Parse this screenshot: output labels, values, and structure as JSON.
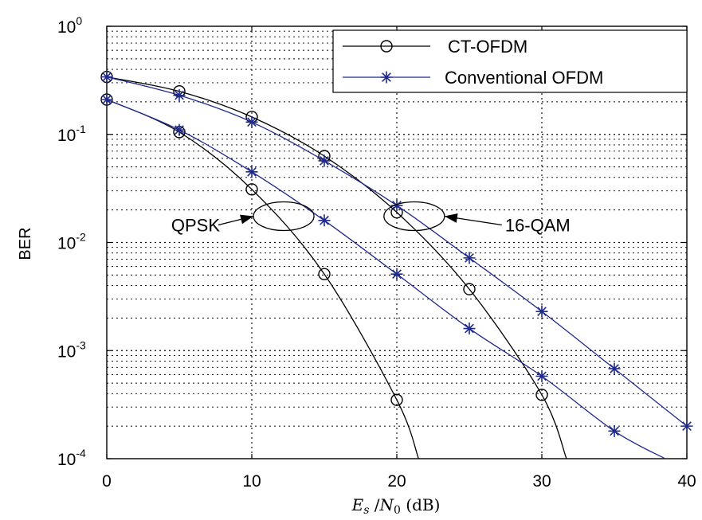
{
  "chart_data": {
    "type": "line",
    "title": "",
    "xlabel": "E_s / N_0 (dB)",
    "ylabel": "BER",
    "xlim": [
      0,
      40
    ],
    "ylim": [
      0.0001,
      1
    ],
    "yscale": "log",
    "grid": true,
    "legend_position": "top-right",
    "x_ticks": [
      "0",
      "10",
      "20",
      "30",
      "40"
    ],
    "y_ticks": [
      {
        "base": "10",
        "exp": "0"
      },
      {
        "base": "10",
        "exp": "-1"
      },
      {
        "base": "10",
        "exp": "-2"
      },
      {
        "base": "10",
        "exp": "-3"
      },
      {
        "base": "10",
        "exp": "-4"
      }
    ],
    "legend": [
      {
        "label": "CT-OFDM",
        "marker": "circle",
        "color": "#000000"
      },
      {
        "label": "Conventional OFDM",
        "marker": "star",
        "color": "#1f2a8c"
      }
    ],
    "annotations": [
      {
        "text": "QPSK",
        "x": 12.2,
        "y": 0.0175
      },
      {
        "text": "16-QAM",
        "x": 21.2,
        "y": 0.0175
      }
    ],
    "series": [
      {
        "group": "CT-OFDM",
        "modulation": "QPSK",
        "marker": "circle",
        "color": "#000000",
        "x": [
          0,
          5,
          10,
          15,
          20,
          21.5
        ],
        "y": [
          0.21,
          0.105,
          0.031,
          0.0051,
          0.00035,
          0.0001
        ]
      },
      {
        "group": "CT-OFDM",
        "modulation": "16-QAM",
        "marker": "circle",
        "color": "#000000",
        "x": [
          0,
          5,
          10,
          15,
          20,
          25,
          30,
          31.7
        ],
        "y": [
          0.34,
          0.25,
          0.145,
          0.063,
          0.019,
          0.0037,
          0.00039,
          0.0001
        ]
      },
      {
        "group": "Conventional OFDM",
        "modulation": "QPSK",
        "marker": "star",
        "color": "#1f2a8c",
        "x": [
          0,
          5,
          10,
          15,
          20,
          25,
          30,
          35,
          38.5
        ],
        "y": [
          0.21,
          0.11,
          0.045,
          0.016,
          0.0051,
          0.0016,
          0.00058,
          0.00018,
          0.0001
        ]
      },
      {
        "group": "Conventional OFDM",
        "modulation": "16-QAM",
        "marker": "star",
        "color": "#1f2a8c",
        "x": [
          0,
          5,
          10,
          15,
          20,
          25,
          30,
          35,
          40
        ],
        "y": [
          0.34,
          0.23,
          0.13,
          0.057,
          0.022,
          0.0072,
          0.0023,
          0.00068,
          0.0002
        ]
      }
    ]
  }
}
